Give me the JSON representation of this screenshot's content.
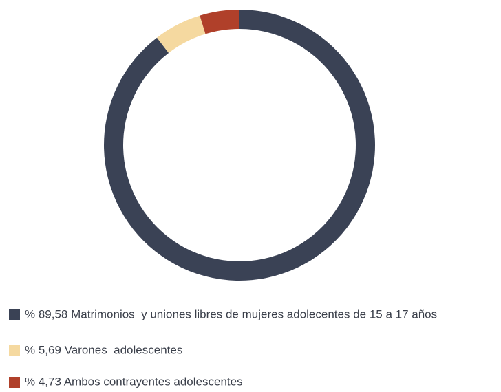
{
  "chart_data": {
    "type": "donut",
    "categories": [
      "% 89,58 Matrimonios  y uniones libres de mujeres adolecentes de 15 a 17 años",
      "% 5,69 Varones  adolescentes",
      "% 4,73 Ambos contrayentes adolescentes"
    ],
    "values": [
      89.58,
      5.69,
      4.73
    ],
    "colors": [
      "#3a4255",
      "#f5d9a0",
      "#b0402a"
    ]
  }
}
